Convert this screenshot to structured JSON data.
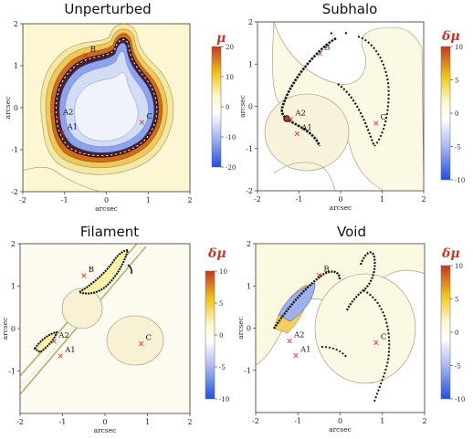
{
  "chart_data": [
    {
      "type": "contour",
      "title": "Unperturbed",
      "xlabel": "arcsec",
      "ylabel": "arcsec",
      "xlim": [
        -2,
        2
      ],
      "ylim": [
        -2,
        2
      ],
      "x_ticks": [
        "-2",
        "-1",
        "0",
        "1",
        "2"
      ],
      "y_ticks": [
        "-2",
        "-1",
        "0",
        "1",
        "2"
      ],
      "colorbar": {
        "label": "μ",
        "range": [
          -20,
          20
        ],
        "ticks": [
          "20",
          "10",
          "0",
          "-10",
          "-20"
        ]
      },
      "images": [
        {
          "label": "B",
          "x": -0.5,
          "y": 1.25
        },
        {
          "label": "A2",
          "x": -1.15,
          "y": -0.25
        },
        {
          "label": "A1",
          "x": -1.05,
          "y": -0.6
        },
        {
          "label": "C",
          "x": 0.85,
          "y": -0.35
        }
      ]
    },
    {
      "type": "contour",
      "title": "Subhalo",
      "xlabel": "arcsec",
      "ylabel": "arcsec",
      "xlim": [
        -2,
        2
      ],
      "ylim": [
        -2,
        2
      ],
      "x_ticks": [
        "-2",
        "-1",
        "0",
        "1",
        "2"
      ],
      "y_ticks": [
        "-2",
        "-1",
        "0",
        "1",
        "2"
      ],
      "colorbar": {
        "label": "δμ",
        "range": [
          -10,
          10
        ],
        "ticks": [
          "10",
          "5",
          "0",
          "-5",
          "-10"
        ]
      },
      "images": [
        {
          "label": "B",
          "x": -0.5,
          "y": 1.25
        },
        {
          "label": "A2",
          "x": -1.2,
          "y": -0.3
        },
        {
          "label": "A1",
          "x": -1.05,
          "y": -0.65
        },
        {
          "label": "C",
          "x": 0.85,
          "y": -0.4
        }
      ]
    },
    {
      "type": "contour",
      "title": "Filament",
      "xlabel": "arcsec",
      "ylabel": "arcsec",
      "xlim": [
        -2,
        2
      ],
      "ylim": [
        -2,
        2
      ],
      "x_ticks": [
        "-2",
        "-1",
        "0",
        "1",
        "2"
      ],
      "y_ticks": [
        "-1",
        "0",
        "1",
        "2"
      ],
      "colorbar": {
        "label": "δμ",
        "range": [
          -10,
          10
        ],
        "ticks": [
          "10",
          "5",
          "0",
          "-5",
          "-10"
        ]
      },
      "images": [
        {
          "label": "B",
          "x": -0.5,
          "y": 1.25
        },
        {
          "label": "A2",
          "x": -1.2,
          "y": -0.3
        },
        {
          "label": "A1",
          "x": -1.05,
          "y": -0.65
        },
        {
          "label": "C",
          "x": 0.85,
          "y": -0.35
        }
      ]
    },
    {
      "type": "contour",
      "title": "Void",
      "xlabel": "arcsec",
      "ylabel": "arcsec",
      "xlim": [
        -2,
        2
      ],
      "ylim": [
        -2,
        2
      ],
      "x_ticks": [
        "-2",
        "-1",
        "0",
        "1",
        "2"
      ],
      "y_ticks": [
        "-1",
        "0",
        "1",
        "2"
      ],
      "colorbar": {
        "label": "δμ",
        "range": [
          -10,
          10
        ],
        "ticks": [
          "10",
          "5",
          "0",
          "-5",
          "-10"
        ]
      },
      "images": [
        {
          "label": "B",
          "x": -0.5,
          "y": 1.25
        },
        {
          "label": "A2",
          "x": -1.2,
          "y": -0.3
        },
        {
          "label": "A1",
          "x": -1.05,
          "y": -0.65
        },
        {
          "label": "C",
          "x": 0.85,
          "y": -0.35
        }
      ]
    }
  ]
}
